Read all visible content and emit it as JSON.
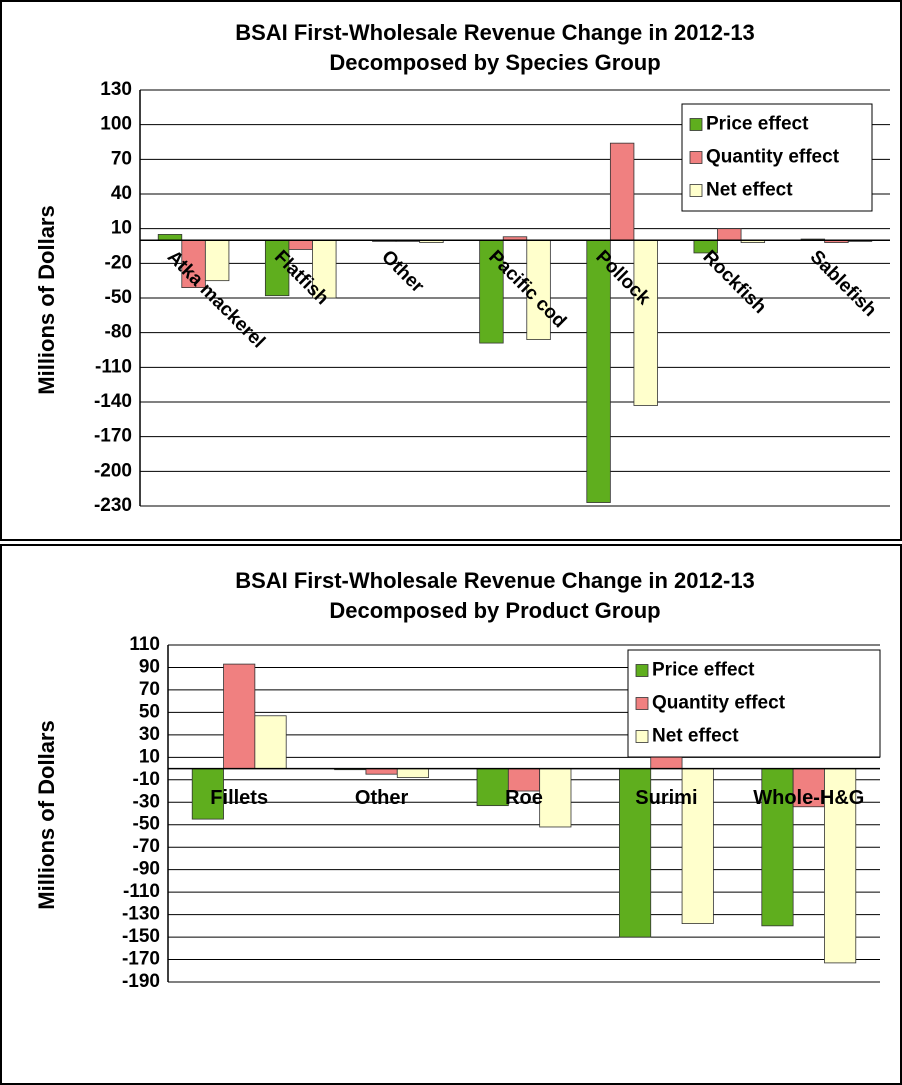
{
  "chart_data": [
    {
      "type": "bar",
      "title": "BSAI First-Wholesale Revenue Change in 2012-13",
      "subtitle": "Decomposed by Species Group",
      "y_label": "Millions of Dollars",
      "categories": [
        "Atka mackerel",
        "Flatfish",
        "Other",
        "Pacific cod",
        "Pollock",
        "Rockfish",
        "Sablefish"
      ],
      "series": [
        {
          "name": "Price effect",
          "color": "#5fae1e",
          "values": [
            5,
            -48,
            -1,
            -89,
            -227,
            -11,
            1
          ]
        },
        {
          "name": "Quantity effect",
          "color": "#f08080",
          "values": [
            -41,
            -8,
            -1,
            3,
            84,
            10,
            -2
          ]
        },
        {
          "name": "Net effect",
          "color": "#ffffcc",
          "values": [
            -35,
            -50,
            -2,
            -86,
            -143,
            -2,
            -1
          ]
        }
      ],
      "ylim": [
        -230,
        130
      ],
      "yticks": [
        130,
        100,
        70,
        40,
        10,
        -20,
        -50,
        -80,
        -110,
        -140,
        -170,
        -200,
        -230
      ],
      "grid": true,
      "legend": "upper right",
      "label_rotation": 45
    },
    {
      "type": "bar",
      "title": "BSAI First-Wholesale Revenue Change in 2012-13",
      "subtitle": "Decomposed by Product Group",
      "y_label": "Millions of Dollars",
      "categories": [
        "Fillets",
        "Other",
        "Roe",
        "Surimi",
        "Whole-H&G"
      ],
      "series": [
        {
          "name": "Price effect",
          "color": "#5fae1e",
          "values": [
            -45,
            -1,
            -33,
            -150,
            -140
          ]
        },
        {
          "name": "Quantity effect",
          "color": "#f08080",
          "values": [
            93,
            -5,
            -20,
            11,
            -34
          ]
        },
        {
          "name": "Net effect",
          "color": "#ffffcc",
          "values": [
            47,
            -8,
            -52,
            -138,
            -173
          ]
        }
      ],
      "ylim": [
        -190,
        110
      ],
      "yticks": [
        110,
        90,
        70,
        50,
        30,
        10,
        -10,
        -30,
        -50,
        -70,
        -90,
        -110,
        -130,
        -150,
        -170,
        -190
      ],
      "grid": true,
      "legend": "upper right",
      "label_rotation": 0
    }
  ]
}
